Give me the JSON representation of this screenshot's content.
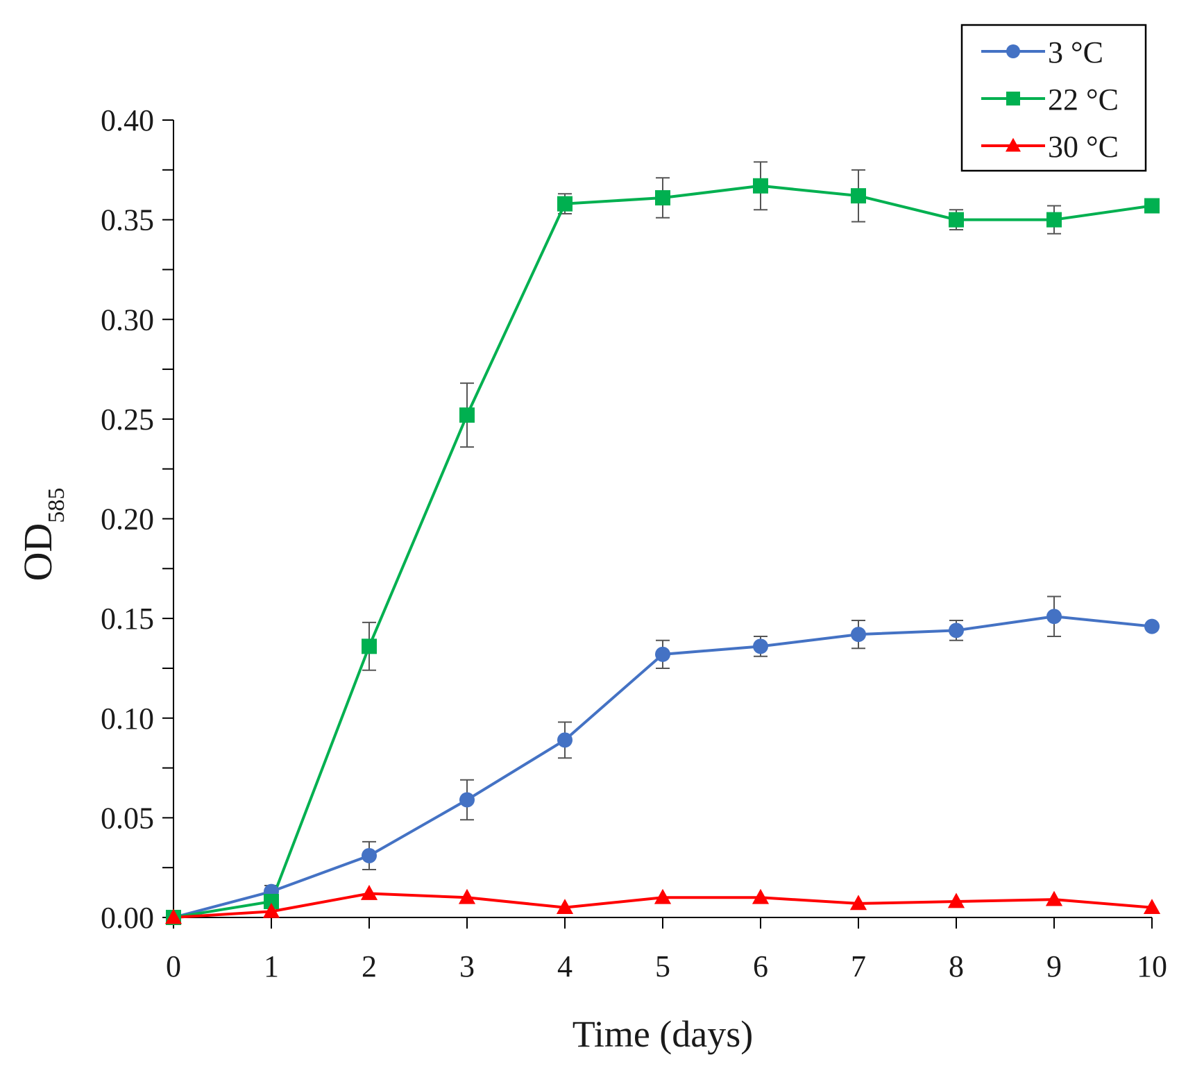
{
  "chart_data": {
    "type": "line",
    "title": "",
    "xlabel": "Time (days)",
    "ylabel": {
      "main": "OD",
      "subscript": "585"
    },
    "x": [
      0,
      1,
      2,
      3,
      4,
      5,
      6,
      7,
      8,
      9,
      10
    ],
    "xticks": [
      "0",
      "1",
      "2",
      "3",
      "4",
      "5",
      "6",
      "7",
      "8",
      "9",
      "10"
    ],
    "yticks": [
      "0.00",
      "0.05",
      "0.10",
      "0.15",
      "0.20",
      "0.25",
      "0.30",
      "0.35",
      "0.40"
    ],
    "xlim": [
      0,
      10
    ],
    "ylim": [
      0,
      0.4
    ],
    "grid": false,
    "legend_position": "top-right",
    "series": [
      {
        "name": "3 °C",
        "color": "#4472c4",
        "marker": "circle",
        "values": [
          0.0,
          0.013,
          0.031,
          0.059,
          0.089,
          0.132,
          0.136,
          0.142,
          0.144,
          0.151,
          0.146
        ],
        "errors": [
          0.0,
          0.003,
          0.007,
          0.01,
          0.009,
          0.007,
          0.005,
          0.007,
          0.005,
          0.01,
          0.0
        ]
      },
      {
        "name": "22 °C",
        "color": "#00b050",
        "marker": "square",
        "values": [
          0.0,
          0.008,
          0.136,
          0.252,
          0.358,
          0.361,
          0.367,
          0.362,
          0.35,
          0.35,
          0.357
        ],
        "errors": [
          0.0,
          0.002,
          0.012,
          0.016,
          0.005,
          0.01,
          0.012,
          0.013,
          0.005,
          0.007,
          0.0
        ]
      },
      {
        "name": "30 °C",
        "color": "#ff0000",
        "marker": "triangle",
        "values": [
          0.0,
          0.003,
          0.012,
          0.01,
          0.005,
          0.01,
          0.01,
          0.007,
          0.008,
          0.009,
          0.005
        ],
        "errors": [
          0.0,
          0.0,
          0.0,
          0.0,
          0.0,
          0.0,
          0.0,
          0.0,
          0.0,
          0.0,
          0.0
        ]
      }
    ]
  }
}
